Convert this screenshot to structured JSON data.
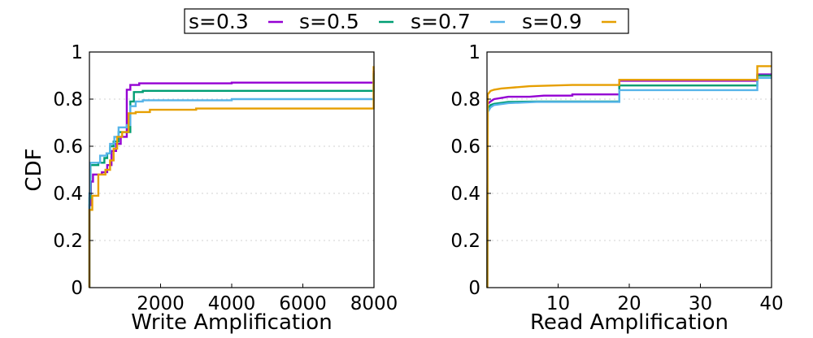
{
  "legend": {
    "entries": [
      {
        "label": "s=0.3",
        "color": "#9400d3"
      },
      {
        "label": "s=0.5",
        "color": "#009e73"
      },
      {
        "label": "s=0.7",
        "color": "#56b4e9"
      },
      {
        "label": "s=0.9",
        "color": "#e69f00"
      }
    ]
  },
  "chart_data": [
    {
      "type": "line",
      "step": true,
      "xlabel": "Write Amplification",
      "ylabel": "CDF",
      "xlim": [
        0,
        8000
      ],
      "ylim": [
        0,
        1
      ],
      "xticks": [
        2000,
        4000,
        6000,
        8000
      ],
      "xtick_labels": [
        "2000",
        "4000",
        "6000",
        "8000"
      ],
      "yticks": [
        0,
        0.2,
        0.4,
        0.6,
        0.8,
        1
      ],
      "ytick_labels": [
        "0",
        "0.2",
        "0.4",
        "0.6",
        "0.8",
        "1"
      ],
      "grid": "horizontal dotted",
      "series": [
        {
          "name": "s=0.3",
          "color": "#9400d3",
          "points": [
            [
              0,
              0
            ],
            [
              0,
              0.35
            ],
            [
              40,
              0.35
            ],
            [
              40,
              0.45
            ],
            [
              100,
              0.45
            ],
            [
              100,
              0.48
            ],
            [
              350,
              0.48
            ],
            [
              350,
              0.49
            ],
            [
              500,
              0.49
            ],
            [
              500,
              0.52
            ],
            [
              620,
              0.52
            ],
            [
              620,
              0.58
            ],
            [
              750,
              0.58
            ],
            [
              750,
              0.61
            ],
            [
              880,
              0.61
            ],
            [
              880,
              0.64
            ],
            [
              1050,
              0.64
            ],
            [
              1050,
              0.84
            ],
            [
              1150,
              0.84
            ],
            [
              1150,
              0.86
            ],
            [
              1400,
              0.86
            ],
            [
              1400,
              0.867
            ],
            [
              4000,
              0.867
            ],
            [
              4000,
              0.87
            ],
            [
              7990,
              0.87
            ],
            [
              7990,
              0.92
            ]
          ]
        },
        {
          "name": "s=0.5",
          "color": "#009e73",
          "points": [
            [
              0,
              0
            ],
            [
              0,
              0.38
            ],
            [
              30,
              0.38
            ],
            [
              30,
              0.52
            ],
            [
              250,
              0.52
            ],
            [
              250,
              0.53
            ],
            [
              420,
              0.53
            ],
            [
              420,
              0.55
            ],
            [
              500,
              0.55
            ],
            [
              500,
              0.57
            ],
            [
              580,
              0.57
            ],
            [
              580,
              0.6
            ],
            [
              680,
              0.6
            ],
            [
              680,
              0.62
            ],
            [
              820,
              0.62
            ],
            [
              820,
              0.66
            ],
            [
              1150,
              0.66
            ],
            [
              1150,
              0.67
            ],
            [
              1150,
              0.67
            ],
            [
              1150,
              0.79
            ],
            [
              1250,
              0.79
            ],
            [
              1250,
              0.83
            ],
            [
              1500,
              0.83
            ],
            [
              1500,
              0.835
            ],
            [
              7990,
              0.835
            ],
            [
              7990,
              0.91
            ]
          ]
        },
        {
          "name": "s=0.7",
          "color": "#56b4e9",
          "points": [
            [
              0,
              0
            ],
            [
              0,
              0.4
            ],
            [
              25,
              0.4
            ],
            [
              25,
              0.53
            ],
            [
              300,
              0.53
            ],
            [
              300,
              0.56
            ],
            [
              480,
              0.56
            ],
            [
              480,
              0.57
            ],
            [
              580,
              0.57
            ],
            [
              580,
              0.61
            ],
            [
              700,
              0.61
            ],
            [
              700,
              0.64
            ],
            [
              820,
              0.64
            ],
            [
              820,
              0.68
            ],
            [
              1050,
              0.68
            ],
            [
              1050,
              0.69
            ],
            [
              1150,
              0.69
            ],
            [
              1150,
              0.77
            ],
            [
              1300,
              0.77
            ],
            [
              1300,
              0.79
            ],
            [
              1500,
              0.79
            ],
            [
              1500,
              0.795
            ],
            [
              4000,
              0.795
            ],
            [
              4000,
              0.8
            ],
            [
              7990,
              0.8
            ],
            [
              7990,
              0.9
            ]
          ]
        },
        {
          "name": "s=0.9",
          "color": "#e69f00",
          "points": [
            [
              0,
              0
            ],
            [
              0,
              0.33
            ],
            [
              80,
              0.33
            ],
            [
              80,
              0.39
            ],
            [
              250,
              0.39
            ],
            [
              250,
              0.48
            ],
            [
              450,
              0.48
            ],
            [
              450,
              0.5
            ],
            [
              580,
              0.5
            ],
            [
              580,
              0.54
            ],
            [
              680,
              0.54
            ],
            [
              680,
              0.59
            ],
            [
              780,
              0.59
            ],
            [
              780,
              0.64
            ],
            [
              920,
              0.64
            ],
            [
              920,
              0.66
            ],
            [
              1100,
              0.66
            ],
            [
              1100,
              0.74
            ],
            [
              1300,
              0.74
            ],
            [
              1300,
              0.745
            ],
            [
              1700,
              0.745
            ],
            [
              1700,
              0.755
            ],
            [
              3000,
              0.755
            ],
            [
              3000,
              0.76
            ],
            [
              7990,
              0.76
            ],
            [
              7990,
              0.94
            ]
          ]
        }
      ]
    },
    {
      "type": "line",
      "step": true,
      "xlabel": "Read Amplification",
      "ylabel": "",
      "xlim": [
        0,
        40
      ],
      "ylim": [
        0,
        1
      ],
      "xticks": [
        10,
        20,
        30,
        40
      ],
      "xtick_labels": [
        "10",
        "20",
        "30",
        "40"
      ],
      "yticks": [
        0,
        0.2,
        0.4,
        0.6,
        0.8,
        1
      ],
      "ytick_labels": [
        "0",
        "0.2",
        "0.4",
        "0.6",
        "0.8",
        "1"
      ],
      "grid": "horizontal dotted",
      "series": [
        {
          "name": "s=0.3",
          "color": "#9400d3",
          "points": [
            [
              0.05,
              0
            ],
            [
              0.1,
              0.78
            ],
            [
              0.5,
              0.79
            ],
            [
              1,
              0.8
            ],
            [
              2,
              0.805
            ],
            [
              3,
              0.81
            ],
            [
              6,
              0.81
            ],
            [
              8,
              0.815
            ],
            [
              12,
              0.815
            ],
            [
              12,
              0.82
            ],
            [
              18.6,
              0.82
            ],
            [
              18.6,
              0.878
            ],
            [
              38,
              0.878
            ],
            [
              38,
              0.905
            ],
            [
              40,
              0.905
            ]
          ]
        },
        {
          "name": "s=0.5",
          "color": "#009e73",
          "points": [
            [
              0.05,
              0
            ],
            [
              0.1,
              0.76
            ],
            [
              0.5,
              0.775
            ],
            [
              1,
              0.78
            ],
            [
              3,
              0.788
            ],
            [
              7,
              0.79
            ],
            [
              18.6,
              0.79
            ],
            [
              18.6,
              0.858
            ],
            [
              38,
              0.858
            ],
            [
              38,
              0.9
            ],
            [
              40,
              0.9
            ]
          ]
        },
        {
          "name": "s=0.7",
          "color": "#56b4e9",
          "points": [
            [
              0.05,
              0
            ],
            [
              0.1,
              0.745
            ],
            [
              0.5,
              0.765
            ],
            [
              1,
              0.775
            ],
            [
              3,
              0.783
            ],
            [
              7,
              0.788
            ],
            [
              18.6,
              0.788
            ],
            [
              18.6,
              0.838
            ],
            [
              38,
              0.838
            ],
            [
              38,
              0.89
            ],
            [
              40,
              0.89
            ]
          ]
        },
        {
          "name": "s=0.9",
          "color": "#e69f00",
          "points": [
            [
              0.05,
              0
            ],
            [
              0.1,
              0.82
            ],
            [
              0.5,
              0.835
            ],
            [
              1,
              0.84
            ],
            [
              2,
              0.845
            ],
            [
              4,
              0.85
            ],
            [
              6,
              0.855
            ],
            [
              12,
              0.86
            ],
            [
              18.6,
              0.86
            ],
            [
              18.6,
              0.882
            ],
            [
              38,
              0.882
            ],
            [
              38,
              0.94
            ],
            [
              40,
              0.94
            ]
          ]
        }
      ]
    }
  ]
}
